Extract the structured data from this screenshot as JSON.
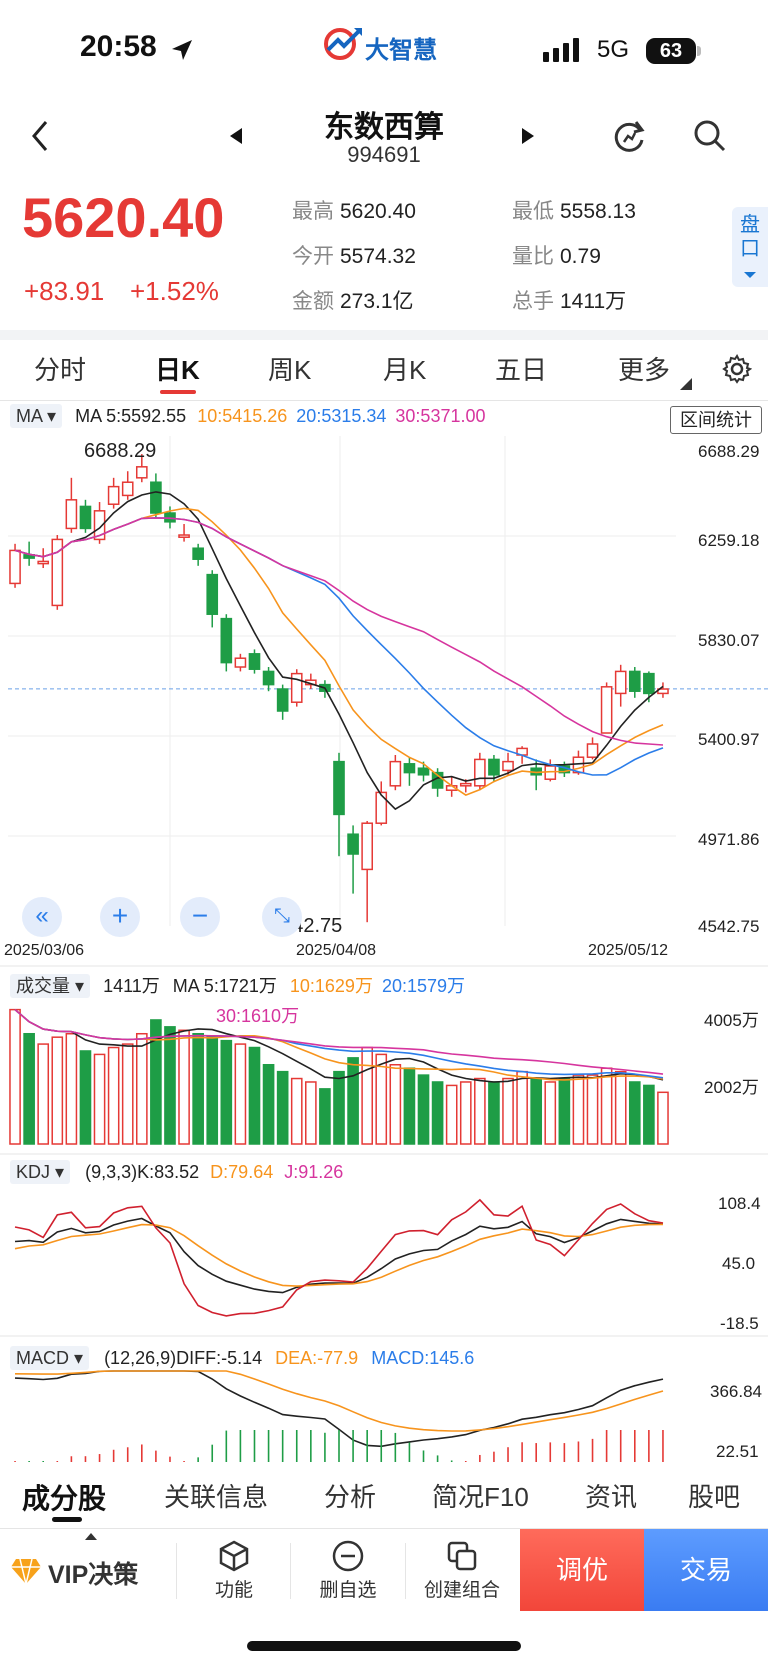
{
  "status": {
    "time": "20:58",
    "network": "5G",
    "battery": "63",
    "brand": "大智慧"
  },
  "header": {
    "name": "东数西算",
    "code": "994691"
  },
  "quote": {
    "price": "5620.40",
    "change": "+83.91",
    "change_pct": "+1.52%",
    "high_label": "最高",
    "high": "5620.40",
    "low_label": "最低",
    "low": "5558.13",
    "open_label": "今开",
    "open": "5574.32",
    "vol_ratio_label": "量比",
    "vol_ratio": "0.79",
    "amount_label": "金额",
    "amount": "273.1亿",
    "total_hands_label": "总手",
    "total_hands": "1411万",
    "pankou": "盘口"
  },
  "tabs": [
    "分时",
    "日K",
    "周K",
    "月K",
    "五日",
    "更多"
  ],
  "ma_panel": {
    "selector": "MA",
    "ma5": "MA 5:5592.55",
    "ma10": "10:5415.26",
    "ma20": "20:5315.34",
    "ma30": "30:5371.00",
    "range_stat": "区间统计",
    "axis": [
      "6688.29",
      "6259.18",
      "5830.07",
      "5400.97",
      "4971.86",
      "4542.75"
    ],
    "max_marker": "6688.29",
    "min_marker": "4542.75",
    "dates": [
      "2025/03/06",
      "2025/04/08",
      "2025/05/12"
    ]
  },
  "volume_panel": {
    "selector": "成交量",
    "current": "1411万",
    "ma5": "MA 5:1721万",
    "ma10": "10:1629万",
    "ma20": "20:1579万",
    "ma30": "30:1610万",
    "axis": [
      "4005万",
      "2002万"
    ]
  },
  "kdj_panel": {
    "selector": "KDJ",
    "params": "(9,3,3)K:83.52",
    "d": "D:79.64",
    "j": "J:91.26",
    "axis": [
      "108.4",
      "45.0",
      "-18.5"
    ]
  },
  "macd_panel": {
    "selector": "MACD",
    "params": "(12,26,9)DIFF:-5.14",
    "dea": "DEA:-77.9",
    "macd": "MACD:145.6",
    "axis": [
      "366.84",
      "22.51"
    ]
  },
  "bottom_tabs": [
    "成分股",
    "关联信息",
    "分析",
    "简况F10",
    "资讯",
    "股吧"
  ],
  "toolbar": {
    "vip": "VIP决策",
    "func": "功能",
    "del_watch": "删自选",
    "combo": "创建组合",
    "tiaoyou": "调优",
    "trade": "交易"
  },
  "colors": {
    "up": "#e53935",
    "down": "#1e9d46",
    "ma5": "#222222",
    "ma10": "#f7941d",
    "ma20": "#2b7de9",
    "ma30": "#d6359e"
  },
  "chart_data": {
    "type": "candlestick",
    "x_start": "2025/03/06",
    "x_end": "2025/05/12",
    "ylim": [
      4542.75,
      6688.29
    ],
    "candles": [
      {
        "o": 6100,
        "c": 6250,
        "h": 6280,
        "l": 6080
      },
      {
        "o": 6230,
        "c": 6215,
        "h": 6290,
        "l": 6180
      },
      {
        "o": 6190,
        "c": 6200,
        "h": 6260,
        "l": 6170
      },
      {
        "o": 6000,
        "c": 6300,
        "h": 6320,
        "l": 5980
      },
      {
        "o": 6350,
        "c": 6480,
        "h": 6580,
        "l": 6330
      },
      {
        "o": 6450,
        "c": 6350,
        "h": 6480,
        "l": 6330
      },
      {
        "o": 6300,
        "c": 6430,
        "h": 6470,
        "l": 6280
      },
      {
        "o": 6460,
        "c": 6540,
        "h": 6580,
        "l": 6440
      },
      {
        "o": 6500,
        "c": 6560,
        "h": 6610,
        "l": 6480
      },
      {
        "o": 6580,
        "c": 6630,
        "h": 6688,
        "l": 6560
      },
      {
        "o": 6560,
        "c": 6420,
        "h": 6600,
        "l": 6400
      },
      {
        "o": 6420,
        "c": 6380,
        "h": 6450,
        "l": 6350
      },
      {
        "o": 6310,
        "c": 6320,
        "h": 6370,
        "l": 6290
      },
      {
        "o": 6260,
        "c": 6210,
        "h": 6280,
        "l": 6180
      },
      {
        "o": 6140,
        "c": 5960,
        "h": 6160,
        "l": 5900
      },
      {
        "o": 5940,
        "c": 5740,
        "h": 5960,
        "l": 5700
      },
      {
        "o": 5720,
        "c": 5760,
        "h": 5780,
        "l": 5700
      },
      {
        "o": 5780,
        "c": 5710,
        "h": 5800,
        "l": 5690
      },
      {
        "o": 5700,
        "c": 5640,
        "h": 5720,
        "l": 5610
      },
      {
        "o": 5620,
        "c": 5520,
        "h": 5640,
        "l": 5480
      },
      {
        "o": 5560,
        "c": 5690,
        "h": 5710,
        "l": 5540
      },
      {
        "o": 5640,
        "c": 5660,
        "h": 5690,
        "l": 5620
      },
      {
        "o": 5640,
        "c": 5610,
        "h": 5660,
        "l": 5580
      },
      {
        "o": 5290,
        "c": 5050,
        "h": 5330,
        "l": 4860
      },
      {
        "o": 4960,
        "c": 4870,
        "h": 5000,
        "l": 4690
      },
      {
        "o": 4800,
        "c": 5010,
        "h": 5020,
        "l": 4560
      },
      {
        "o": 5010,
        "c": 5150,
        "h": 5200,
        "l": 5000
      },
      {
        "o": 5180,
        "c": 5290,
        "h": 5320,
        "l": 5160
      },
      {
        "o": 5280,
        "c": 5240,
        "h": 5310,
        "l": 5180
      },
      {
        "o": 5260,
        "c": 5230,
        "h": 5290,
        "l": 5200
      },
      {
        "o": 5240,
        "c": 5170,
        "h": 5260,
        "l": 5130
      },
      {
        "o": 5160,
        "c": 5180,
        "h": 5220,
        "l": 5130
      },
      {
        "o": 5180,
        "c": 5190,
        "h": 5210,
        "l": 5150
      },
      {
        "o": 5180,
        "c": 5300,
        "h": 5330,
        "l": 5160
      },
      {
        "o": 5300,
        "c": 5230,
        "h": 5320,
        "l": 5200
      },
      {
        "o": 5250,
        "c": 5290,
        "h": 5330,
        "l": 5230
      },
      {
        "o": 5320,
        "c": 5350,
        "h": 5360,
        "l": 5280
      },
      {
        "o": 5260,
        "c": 5230,
        "h": 5300,
        "l": 5160
      },
      {
        "o": 5210,
        "c": 5270,
        "h": 5300,
        "l": 5200
      },
      {
        "o": 5270,
        "c": 5240,
        "h": 5290,
        "l": 5220
      },
      {
        "o": 5240,
        "c": 5310,
        "h": 5340,
        "l": 5230
      },
      {
        "o": 5310,
        "c": 5370,
        "h": 5400,
        "l": 5300
      },
      {
        "o": 5420,
        "c": 5630,
        "h": 5650,
        "l": 5420
      },
      {
        "o": 5600,
        "c": 5700,
        "h": 5730,
        "l": 5540
      },
      {
        "o": 5700,
        "c": 5610,
        "h": 5720,
        "l": 5580
      },
      {
        "o": 5690,
        "c": 5600,
        "h": 5700,
        "l": 5560
      },
      {
        "o": 5600,
        "c": 5620,
        "h": 5650,
        "l": 5580
      }
    ],
    "volume": [
      3900,
      3200,
      2900,
      3100,
      3200,
      2700,
      2600,
      2800,
      2900,
      3200,
      3600,
      3400,
      3300,
      3200,
      3100,
      3000,
      2900,
      2800,
      2300,
      2100,
      1900,
      1800,
      1600,
      2100,
      2500,
      2800,
      2600,
      2300,
      2200,
      2000,
      1800,
      1700,
      1800,
      1900,
      1800,
      1900,
      2100,
      1900,
      1800,
      1900,
      2000,
      2000,
      2200,
      2100,
      1800,
      1700,
      1500
    ],
    "volume_ylim": [
      0,
      4005
    ],
    "kdj_ylim": [
      -18.5,
      108.4
    ],
    "macd_ylim": [
      22.51,
      366.84
    ]
  }
}
